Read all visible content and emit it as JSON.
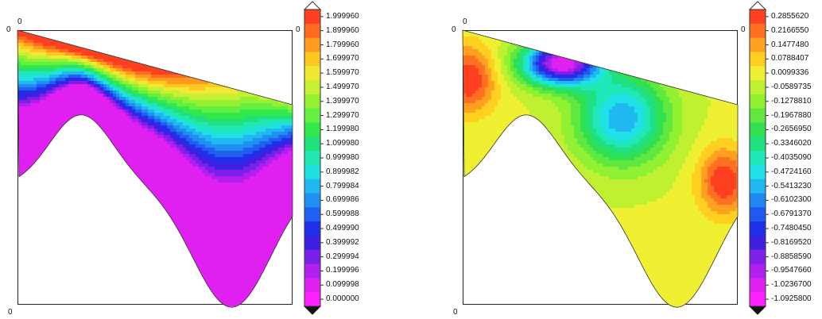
{
  "chart_data": [
    {
      "type": "contour",
      "title": "",
      "xlabel": "",
      "ylabel": "",
      "tick_labels": {
        "top_left": "0",
        "left": "0",
        "bottom_left": "0",
        "top_right": "0"
      },
      "colorbar": {
        "extend": "both",
        "levels": [
          "1.999960",
          "1.899960",
          "1.799960",
          "1.699970",
          "1.599970",
          "1.499970",
          "1.399970",
          "1.299970",
          "1.199980",
          "1.099980",
          "0.999980",
          "0.899982",
          "0.799984",
          "0.699986",
          "0.599988",
          "0.499990",
          "0.399992",
          "0.299994",
          "0.199996",
          "0.099998",
          "0.000000"
        ],
        "colors": [
          "#ff4020",
          "#ff6a20",
          "#ff9a20",
          "#ffc820",
          "#f0e832",
          "#c8f032",
          "#96f032",
          "#64f040",
          "#32e84a",
          "#20e07a",
          "#20e8b0",
          "#20e0e0",
          "#20b8f0",
          "#2090f0",
          "#2060f0",
          "#2030e8",
          "#4020e0",
          "#7a20e8",
          "#b020f0",
          "#e020f0",
          "#ff20ff"
        ]
      }
    },
    {
      "type": "contour",
      "title": "",
      "xlabel": "",
      "ylabel": "",
      "tick_labels": {
        "top_left": "0",
        "left": "0",
        "bottom_left": "0",
        "top_right": "0"
      },
      "colorbar": {
        "extend": "both",
        "levels": [
          "0.2855620",
          "0.2166550",
          "0.1477480",
          "0.0788407",
          "0.0099336",
          "-0.0589735",
          "-0.1278810",
          "-0.1967880",
          "-0.2656950",
          "-0.3346020",
          "-0.4035090",
          "-0.4724160",
          "-0.5413230",
          "-0.6102300",
          "-0.6791370",
          "-0.7480450",
          "-0.8169520",
          "-0.8858590",
          "-0.9547660",
          "-1.0236700",
          "-1.0925800"
        ],
        "colors": [
          "#ff4020",
          "#ff7020",
          "#ffa020",
          "#ffd020",
          "#f0f032",
          "#c0f032",
          "#90f032",
          "#60e840",
          "#30e050",
          "#20e080",
          "#20e8b8",
          "#20e0e8",
          "#20b8f0",
          "#2088f0",
          "#2058f0",
          "#2030e8",
          "#4020e0",
          "#8020e8",
          "#b020f0",
          "#e020f0",
          "#ff20ff"
        ]
      }
    }
  ]
}
